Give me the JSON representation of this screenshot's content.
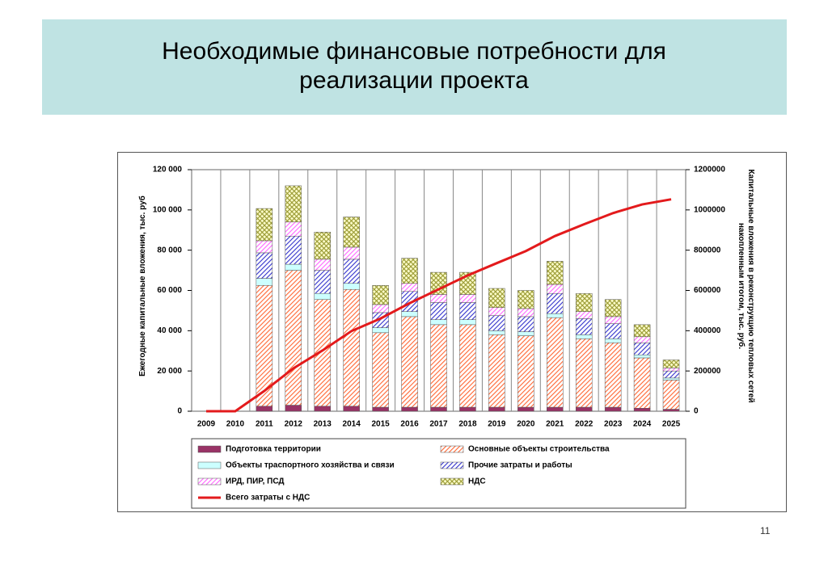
{
  "title": "Необходимые финансовые потребности для реализации проекта",
  "page_number": "11",
  "chart_data": {
    "type": "bar",
    "stacked": true,
    "ylabel": "Ежегодные капитальные вложения, тыс. руб",
    "y2label": "Капитальные вложения в реконструкцию тепловых сетей накопленным итогом, тыс. руб.",
    "categories": [
      "2009",
      "2010",
      "2011",
      "2012",
      "2013",
      "2014",
      "2015",
      "2016",
      "2017",
      "2018",
      "2019",
      "2020",
      "2021",
      "2022",
      "2023",
      "2024",
      "2025"
    ],
    "ylim": [
      0,
      120000
    ],
    "yticks": [
      0,
      {
        "value": 20000,
        "label": "20 000"
      },
      {
        "value": 40000,
        "label": "40 000"
      },
      {
        "value": 60000,
        "label": "60 000"
      },
      {
        "value": 80000,
        "label": "80 000"
      },
      {
        "value": 100000,
        "label": "100 000"
      },
      {
        "value": 120000,
        "label": "120 000"
      }
    ],
    "y2lim": [
      0,
      1200000
    ],
    "y2ticks": [
      0,
      200000,
      400000,
      600000,
      800000,
      1000000,
      1200000
    ],
    "series": [
      {
        "name": "Подготовка территории",
        "color": "#993366",
        "values": [
          0,
          0,
          2500,
          3000,
          2500,
          2500,
          2000,
          2000,
          2000,
          2000,
          2000,
          2000,
          2000,
          2000,
          2000,
          1500,
          1000
        ]
      },
      {
        "name": "Основные объекты строительства",
        "color": "#ff6633",
        "values": [
          0,
          0,
          60000,
          67000,
          53000,
          58000,
          37000,
          45000,
          41000,
          41000,
          36000,
          35500,
          44500,
          34000,
          32000,
          25000,
          14500
        ]
      },
      {
        "name": "Объекты траспортного хозяйства и связи",
        "color": "#ccffff",
        "values": [
          0,
          0,
          3500,
          3000,
          3000,
          3000,
          2500,
          2500,
          2500,
          2500,
          2000,
          2000,
          2000,
          2000,
          2000,
          1500,
          1000
        ]
      },
      {
        "name": "Прочие затраты и работы",
        "color": "#3333cc",
        "values": [
          0,
          0,
          12700,
          14000,
          11500,
          12000,
          7500,
          10000,
          8500,
          8500,
          7500,
          7500,
          10000,
          8000,
          7500,
          6000,
          3500
        ]
      },
      {
        "name": "ИРД, ПИР, ПСД",
        "color": "#ff66ff",
        "values": [
          0,
          0,
          6000,
          7000,
          5500,
          6000,
          4000,
          4000,
          4000,
          4000,
          4000,
          4000,
          4500,
          3500,
          3500,
          3000,
          1500
        ]
      },
      {
        "name": "НДС",
        "color": "#999933",
        "values": [
          0,
          0,
          16000,
          18000,
          13500,
          15000,
          9500,
          12500,
          11000,
          11000,
          9500,
          9000,
          11500,
          9000,
          8500,
          6000,
          4000
        ]
      },
      {
        "name": "Всего затраты с НДС",
        "color": "#e31a1c",
        "type": "line",
        "axis": "y2",
        "values": [
          0,
          0,
          100700,
          212700,
          301700,
          398200,
          460700,
          536700,
          605700,
          674700,
          735700,
          795700,
          870200,
          928700,
          984200,
          1027200,
          1052700
        ]
      }
    ]
  }
}
